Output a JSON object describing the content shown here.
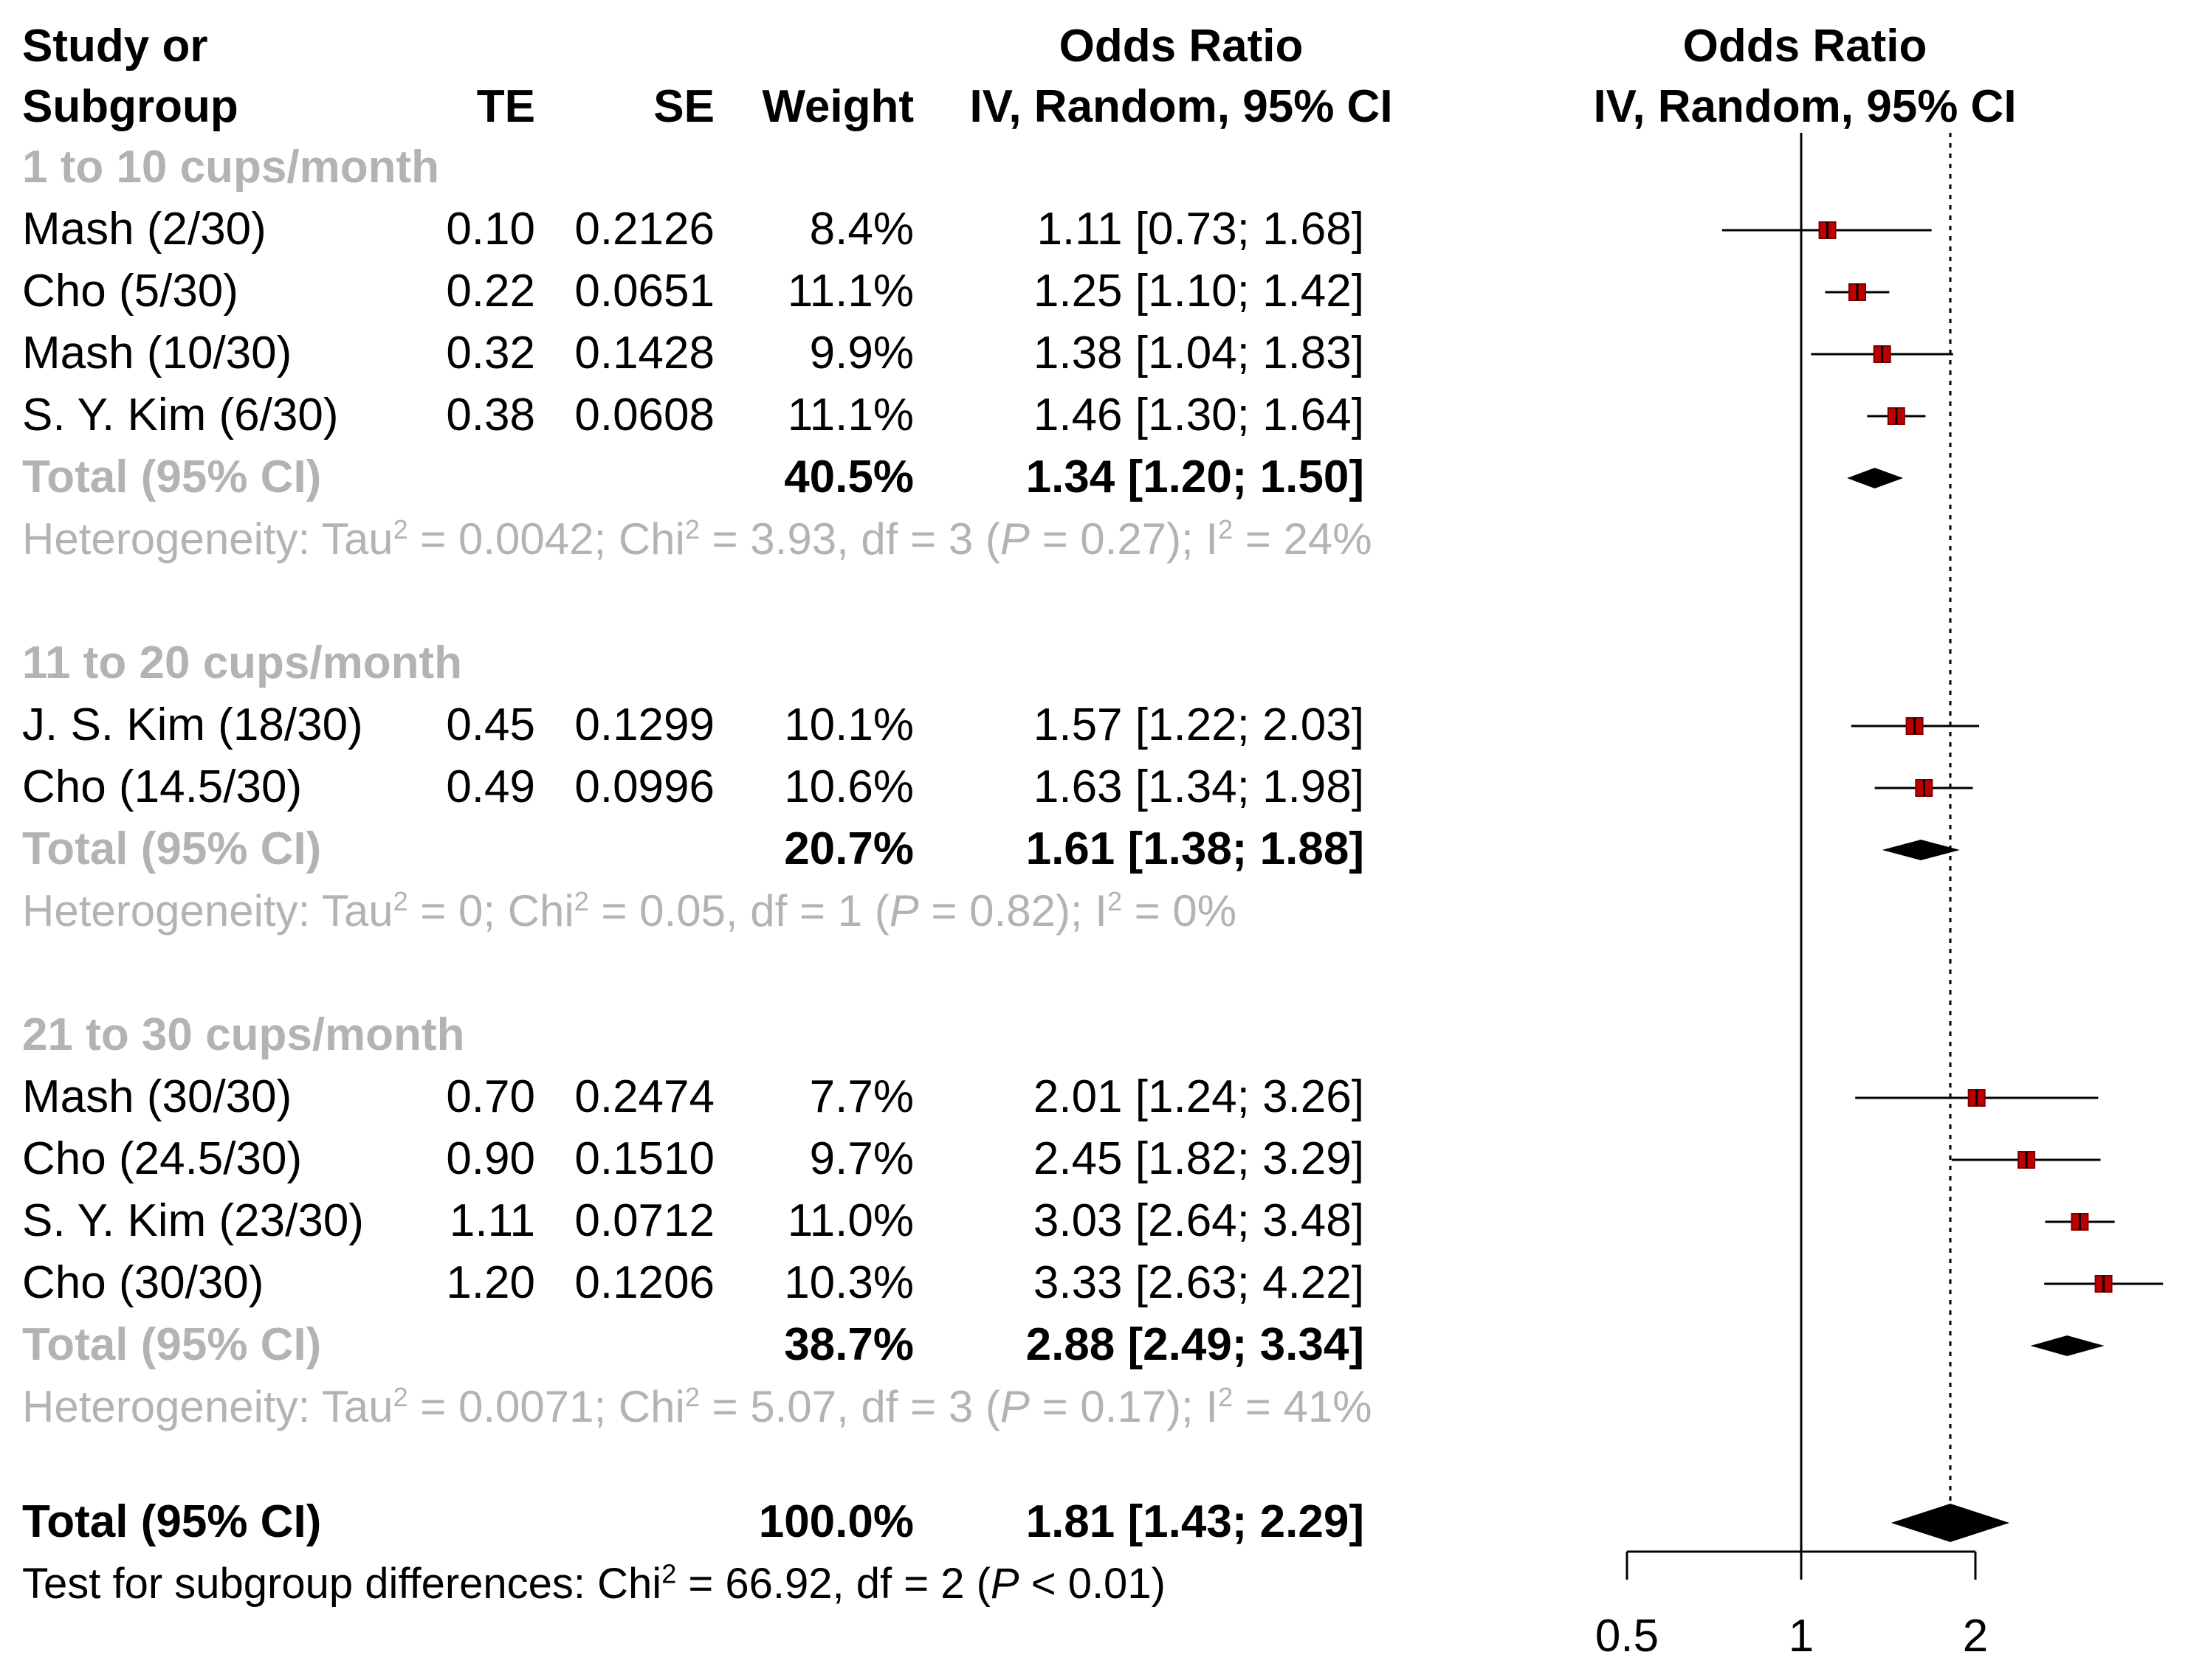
{
  "headers": {
    "study_line1": "Study or",
    "study_line2": "Subgroup",
    "te": "TE",
    "se": "SE",
    "weight": "Weight",
    "or_line1": "Odds Ratio",
    "or_line2": "IV, Random, 95% CI",
    "plot_line1": "Odds Ratio",
    "plot_line2": "IV, Random, 95% CI"
  },
  "subgroups": [
    {
      "title": "1 to 10 cups/month",
      "studies": [
        {
          "name": "Mash (2/30)",
          "te": "0.10",
          "se": "0.2126",
          "weight": "8.4%",
          "ci": "1.11 [0.73; 1.68]"
        },
        {
          "name": "Cho (5/30)",
          "te": "0.22",
          "se": "0.0651",
          "weight": "11.1%",
          "ci": "1.25 [1.10; 1.42]"
        },
        {
          "name": "Mash (10/30)",
          "te": "0.32",
          "se": "0.1428",
          "weight": "9.9%",
          "ci": "1.38 [1.04; 1.83]"
        },
        {
          "name": "S. Y. Kim (6/30)",
          "te": "0.38",
          "se": "0.0608",
          "weight": "11.1%",
          "ci": "1.46 [1.30; 1.64]"
        }
      ],
      "total": {
        "label": "Total (95% CI)",
        "weight": "40.5%",
        "ci": "1.34 [1.20; 1.50]"
      },
      "het": {
        "tau2": "0.0042",
        "chi2": "3.93",
        "df": "3",
        "p": "0.27",
        "i2": "24%"
      }
    },
    {
      "title": "11 to 20 cups/month",
      "studies": [
        {
          "name": "J. S. Kim (18/30)",
          "te": "0.45",
          "se": "0.1299",
          "weight": "10.1%",
          "ci": "1.57 [1.22; 2.03]"
        },
        {
          "name": "Cho (14.5/30)",
          "te": "0.49",
          "se": "0.0996",
          "weight": "10.6%",
          "ci": "1.63 [1.34; 1.98]"
        }
      ],
      "total": {
        "label": "Total (95% CI)",
        "weight": "20.7%",
        "ci": "1.61 [1.38; 1.88]"
      },
      "het": {
        "tau2": "0",
        "chi2": "0.05",
        "df": "1",
        "p": "0.82",
        "i2": "0%"
      }
    },
    {
      "title": "21 to 30 cups/month",
      "studies": [
        {
          "name": "Mash (30/30)",
          "te": "0.70",
          "se": "0.2474",
          "weight": "7.7%",
          "ci": "2.01 [1.24; 3.26]"
        },
        {
          "name": "Cho (24.5/30)",
          "te": "0.90",
          "se": "0.1510",
          "weight": "9.7%",
          "ci": "2.45 [1.82; 3.29]"
        },
        {
          "name": "S. Y. Kim (23/30)",
          "te": "1.11",
          "se": "0.0712",
          "weight": "11.0%",
          "ci": "3.03 [2.64; 3.48]"
        },
        {
          "name": "Cho (30/30)",
          "te": "1.20",
          "se": "0.1206",
          "weight": "10.3%",
          "ci": "3.33 [2.63; 4.22]"
        }
      ],
      "total": {
        "label": "Total (95% CI)",
        "weight": "38.7%",
        "ci": "2.88 [2.49; 3.34]"
      },
      "het": {
        "tau2": "0.0071",
        "chi2": "5.07",
        "df": "3",
        "p": "0.17",
        "i2": "41%"
      }
    }
  ],
  "overall": {
    "label": "Total (95% CI)",
    "weight": "100.0%",
    "ci": "1.81 [1.43; 2.29]"
  },
  "subgroup_test": {
    "chi2": "66.92",
    "df": "2",
    "p": "< 0.01"
  },
  "text": {
    "het_prefix": "Heterogeneity: Tau",
    "chi_prefix": "Chi",
    "test_prefix": "Test for subgroup differences: Chi"
  },
  "chart_data": {
    "type": "forest",
    "scale": "log",
    "axis_ticks": [
      0.5,
      1,
      2
    ],
    "axis_tick_labels": [
      "0.5",
      "1",
      "2"
    ],
    "reference_line": 1,
    "summary_line": 1.81,
    "marker_color": "#c00000",
    "studies": [
      {
        "or": 1.11,
        "lo": 0.73,
        "hi": 1.68
      },
      {
        "or": 1.25,
        "lo": 1.1,
        "hi": 1.42
      },
      {
        "or": 1.38,
        "lo": 1.04,
        "hi": 1.83
      },
      {
        "or": 1.46,
        "lo": 1.3,
        "hi": 1.64
      },
      {
        "or": 1.57,
        "lo": 1.22,
        "hi": 2.03
      },
      {
        "or": 1.63,
        "lo": 1.34,
        "hi": 1.98
      },
      {
        "or": 2.01,
        "lo": 1.24,
        "hi": 3.26
      },
      {
        "or": 2.45,
        "lo": 1.82,
        "hi": 3.29
      },
      {
        "or": 3.03,
        "lo": 2.64,
        "hi": 3.48
      },
      {
        "or": 3.33,
        "lo": 2.63,
        "hi": 4.22
      }
    ],
    "diamonds": [
      {
        "or": 1.34,
        "lo": 1.2,
        "hi": 1.5
      },
      {
        "or": 1.61,
        "lo": 1.38,
        "hi": 1.88
      },
      {
        "or": 2.88,
        "lo": 2.49,
        "hi": 3.34
      },
      {
        "or": 1.81,
        "lo": 1.43,
        "hi": 2.29
      }
    ]
  }
}
